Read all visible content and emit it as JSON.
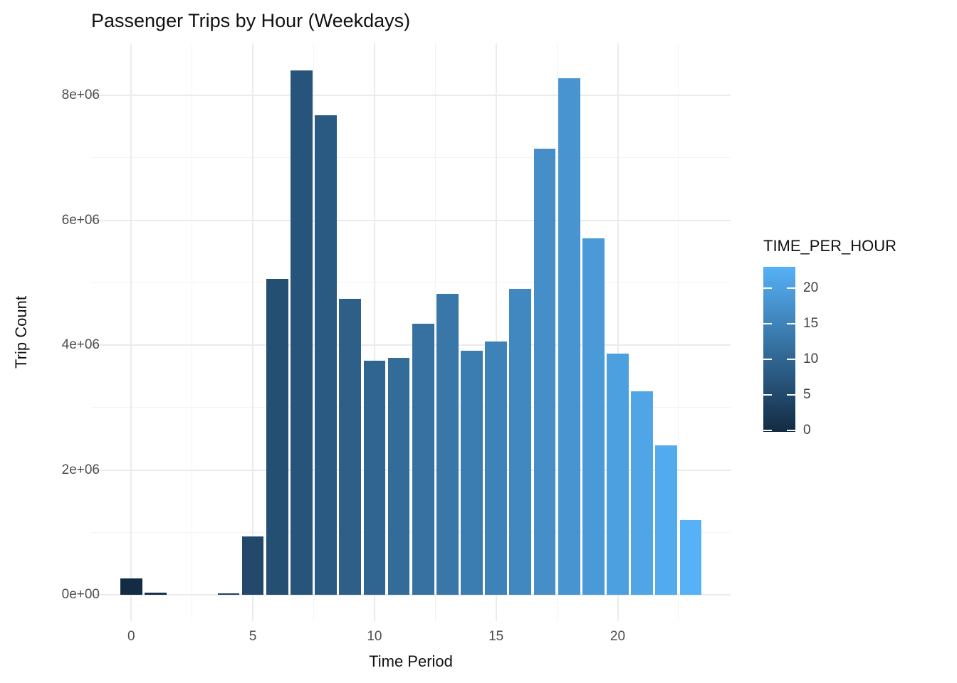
{
  "chart_data": {
    "type": "bar",
    "title": "Passenger Trips by Hour (Weekdays)",
    "xlabel": "Time Period",
    "ylabel": "Trip Count",
    "x": [
      0,
      1,
      2,
      3,
      4,
      5,
      6,
      7,
      8,
      9,
      10,
      11,
      12,
      13,
      14,
      15,
      16,
      17,
      18,
      19,
      20,
      21,
      22,
      23
    ],
    "values": [
      265000,
      34000,
      0,
      0,
      20000,
      935000,
      5060000,
      8400000,
      7680000,
      4740000,
      3750000,
      3800000,
      4340000,
      4820000,
      3910000,
      4060000,
      4900000,
      7150000,
      8270000,
      5710000,
      3860000,
      3260000,
      2390000,
      1200000
    ],
    "x_ticks": [
      {
        "label": "0",
        "value": 0
      },
      {
        "label": "5",
        "value": 5
      },
      {
        "label": "10",
        "value": 10
      },
      {
        "label": "15",
        "value": 15
      },
      {
        "label": "20",
        "value": 20
      }
    ],
    "x_minor_ticks": [
      2.5,
      7.5,
      12.5,
      17.5,
      22.5
    ],
    "y_ticks": [
      {
        "label": "0e+00",
        "value": 0
      },
      {
        "label": "2e+06",
        "value": 2000000
      },
      {
        "label": "4e+06",
        "value": 4000000
      },
      {
        "label": "6e+06",
        "value": 6000000
      },
      {
        "label": "8e+06",
        "value": 8000000
      }
    ],
    "y_minor_ticks": [
      1000000,
      3000000,
      5000000,
      7000000
    ],
    "ylim": [
      0,
      8400000
    ],
    "xlim": [
      0,
      23
    ],
    "grid": "on",
    "legend": {
      "title": "TIME_PER_HOUR",
      "position": "right",
      "low_color": "#132B43",
      "high_color": "#56B1F7",
      "range": [
        0,
        23
      ],
      "ticks": [
        {
          "label": "0",
          "value": 0
        },
        {
          "label": "5",
          "value": 5
        },
        {
          "label": "10",
          "value": 10
        },
        {
          "label": "15",
          "value": 15
        },
        {
          "label": "20",
          "value": 20
        }
      ]
    },
    "colors": {
      "background": "#FFFFFF",
      "grid_major": "#EBEBEB",
      "grid_minor": "#F3F3F3",
      "tick_text": "#4D4D4D",
      "title_text": "#111111"
    }
  }
}
